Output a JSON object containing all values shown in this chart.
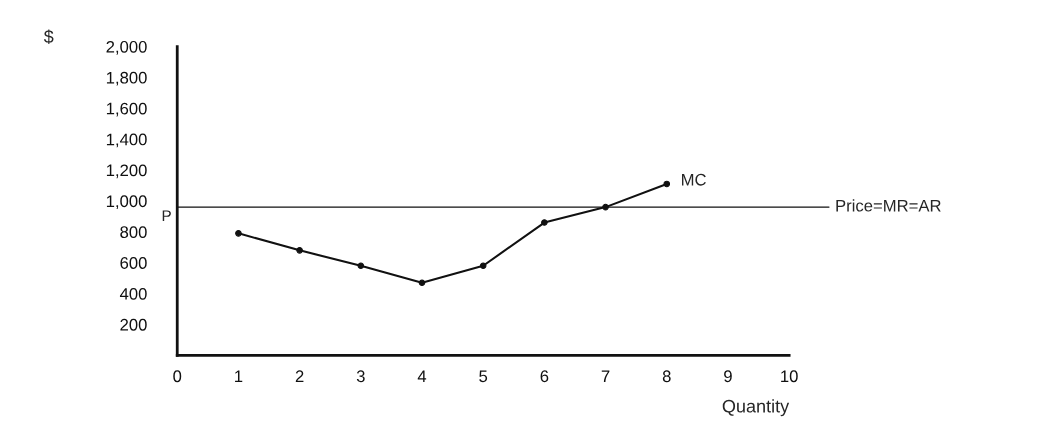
{
  "chart_data": {
    "type": "line",
    "ylabel": "$",
    "xlabel": "Quantity",
    "x": [
      1,
      2,
      3,
      4,
      5,
      6,
      7,
      8
    ],
    "series": [
      {
        "name": "MC",
        "color": "#111111",
        "values": [
          790,
          680,
          580,
          470,
          580,
          860,
          960,
          1110
        ]
      }
    ],
    "xlim": [
      0,
      10
    ],
    "xticks": [
      0,
      1,
      2,
      3,
      4,
      5,
      6,
      7,
      8,
      9,
      10
    ],
    "ylim": [
      0,
      2000
    ],
    "yticks": [
      {
        "value": 200,
        "label": "200"
      },
      {
        "value": 400,
        "label": "400"
      },
      {
        "value": 600,
        "label": "600"
      },
      {
        "value": 800,
        "label": "800"
      },
      {
        "value": 1000,
        "label": "1,000"
      },
      {
        "value": 1200,
        "label": "1,200"
      },
      {
        "value": 1400,
        "label": "1,400"
      },
      {
        "value": 1600,
        "label": "1,600"
      },
      {
        "value": 1800,
        "label": "1,800"
      },
      {
        "value": 2000,
        "label": "2,000"
      }
    ],
    "ref_lines": [
      {
        "axis": "y",
        "value": 960,
        "label": "Price=MR=AR",
        "color": "#111111"
      }
    ],
    "annotations": [
      {
        "text": "P",
        "x": 0,
        "y": 960
      }
    ],
    "marker": "circle",
    "line_style": "solid",
    "grid": false,
    "legend": false
  }
}
